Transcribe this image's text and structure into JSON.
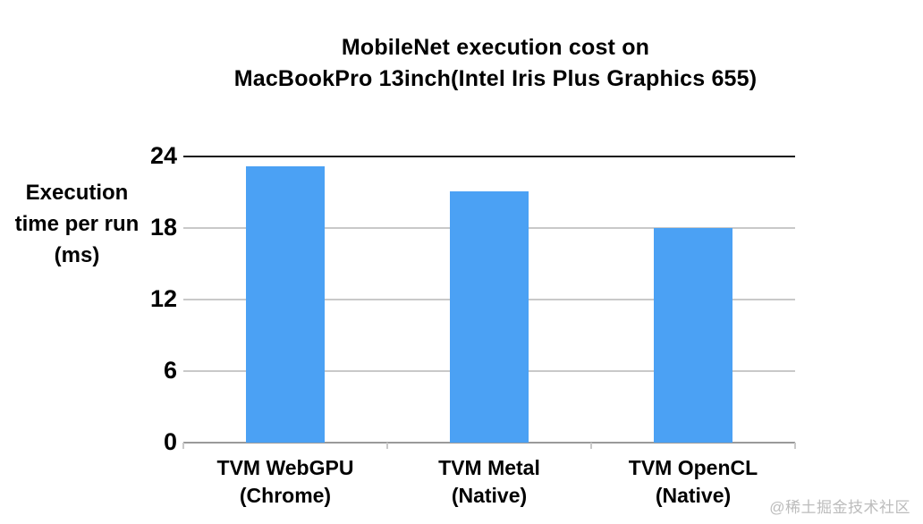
{
  "title": {
    "line1": "MobileNet execution cost on",
    "line2": "MacBookPro 13inch(Intel Iris Plus Graphics 655)"
  },
  "y_axis": {
    "label_lines": [
      "Execution",
      "time per run",
      "(ms)"
    ]
  },
  "watermark": "@稀土掘金技术社区",
  "colors": {
    "bar": "#4BA1F4",
    "gridline": "#c9c9c9",
    "top_line": "#141414",
    "baseline": "#9a9a9a"
  },
  "chart_data": {
    "type": "bar",
    "title": "MobileNet execution cost on MacBookPro 13inch(Intel Iris Plus Graphics 655)",
    "categories": [
      [
        "TVM WebGPU",
        "(Chrome)"
      ],
      [
        "TVM Metal",
        "(Native)"
      ],
      [
        "TVM OpenCL",
        "(Native)"
      ]
    ],
    "values": [
      23.2,
      21.1,
      18
    ],
    "xlabel": "",
    "ylabel": "Execution time per run (ms)",
    "ylim": [
      0,
      24
    ],
    "yticks": [
      0,
      6,
      12,
      18,
      24
    ],
    "grid": true,
    "legend": false
  }
}
